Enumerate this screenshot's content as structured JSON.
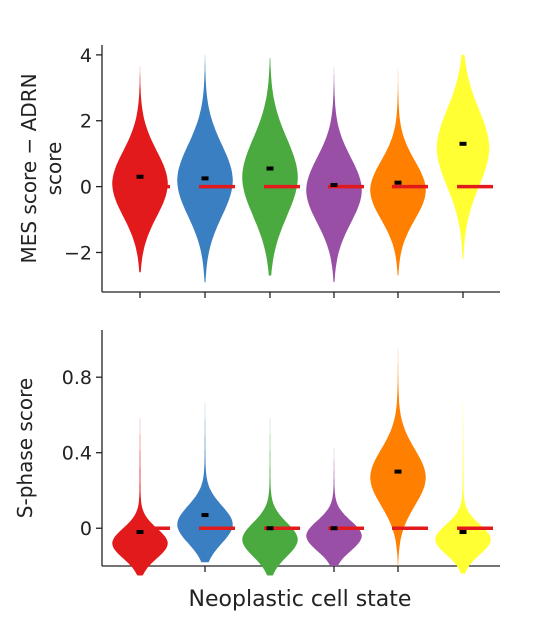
{
  "xlabel": "Neoplastic cell state",
  "colors": [
    "#e31a1c",
    "#3a7fc1",
    "#4aaa3f",
    "#9a4fa6",
    "#ff7f00",
    "#ffff33"
  ],
  "mean_marker_color": "#000000",
  "reference_line_color": "#e31a1c",
  "chart_data": [
    {
      "type": "violin",
      "ylabel_lines": [
        "MES score − ADRN",
        "score"
      ],
      "ylim": [
        -3.2,
        4.3
      ],
      "yticks": [
        4,
        2,
        0,
        -2
      ],
      "ytick_labels": [
        "4",
        "2",
        "0",
        "−2"
      ],
      "reference_line": 0,
      "violins": [
        {
          "mean": 0.3,
          "min": -2.6,
          "max": 3.7,
          "mode": 0.1,
          "width": 0.9,
          "spread": 1.0
        },
        {
          "mean": 0.25,
          "min": -2.9,
          "max": 4.0,
          "mode": 0.2,
          "width": 0.9,
          "spread": 1.1
        },
        {
          "mean": 0.55,
          "min": -2.7,
          "max": 3.9,
          "mode": 0.3,
          "width": 0.9,
          "spread": 1.2
        },
        {
          "mean": 0.05,
          "min": -2.9,
          "max": 3.8,
          "mode": -0.1,
          "width": 0.9,
          "spread": 1.0
        },
        {
          "mean": 0.12,
          "min": -2.7,
          "max": 3.7,
          "mode": -0.1,
          "width": 0.9,
          "spread": 0.9
        },
        {
          "mean": 1.3,
          "min": -2.2,
          "max": 4.0,
          "mode": 1.2,
          "width": 0.85,
          "spread": 1.2
        }
      ]
    },
    {
      "type": "violin",
      "ylabel_lines": [
        "S-phase score"
      ],
      "ylim": [
        -0.2,
        1.05
      ],
      "yticks": [
        0.8,
        0.4,
        0
      ],
      "ytick_labels": [
        "0.8",
        "0.4",
        "0"
      ],
      "reference_line": 0,
      "violins": [
        {
          "mean": -0.02,
          "min": -0.25,
          "max": 0.62,
          "mode": -0.08,
          "width": 0.9,
          "spread": 0.08
        },
        {
          "mean": 0.07,
          "min": -0.18,
          "max": 0.7,
          "mode": 0.02,
          "width": 0.9,
          "spread": 0.1
        },
        {
          "mean": 0.0,
          "min": -0.25,
          "max": 0.62,
          "mode": -0.06,
          "width": 0.9,
          "spread": 0.09
        },
        {
          "mean": 0.0,
          "min": -0.2,
          "max": 0.45,
          "mode": -0.04,
          "width": 0.9,
          "spread": 0.08
        },
        {
          "mean": 0.3,
          "min": -0.2,
          "max": 1.0,
          "mode": 0.27,
          "width": 0.9,
          "spread": 0.15
        },
        {
          "mean": -0.02,
          "min": -0.24,
          "max": 0.72,
          "mode": -0.06,
          "width": 0.9,
          "spread": 0.08
        }
      ]
    }
  ]
}
